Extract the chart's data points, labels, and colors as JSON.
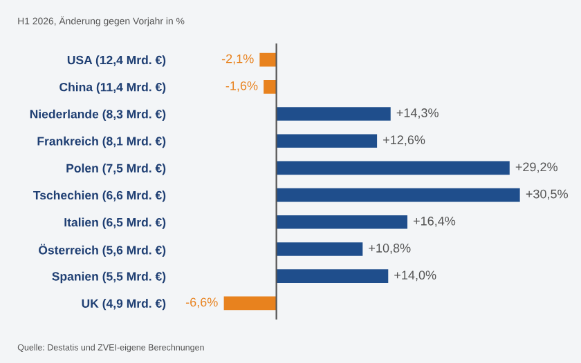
{
  "chart_data": {
    "type": "bar",
    "orientation": "horizontal",
    "title": "H1 2026, Änderung gegen Vorjahr in %",
    "categories": [
      "USA (12,4 Mrd. €)",
      "China (11,4 Mrd. €)",
      "Niederlande (8,3 Mrd. €)",
      "Frankreich (8,1 Mrd. €)",
      "Polen (7,5 Mrd. €)",
      "Tschechien (6,6 Mrd. €)",
      "Italien (6,5 Mrd. €)",
      "Österreich (5,6 Mrd. €)",
      "Spanien (5,5 Mrd. €)",
      "UK (4,9 Mrd. €)"
    ],
    "values": [
      -2.1,
      -1.6,
      14.3,
      12.6,
      29.2,
      30.5,
      16.4,
      10.8,
      14.0,
      -6.6
    ],
    "colors": [
      "#e8821e",
      "#e8821e",
      "#1f4e8c",
      "#1f4e8c",
      "#1f4e8c",
      "#1f4e8c",
      "#1f4e8c",
      "#1f4e8c",
      "#1f4e8c",
      "#e8821e"
    ],
    "value_labels": [
      "-2,1%",
      "-1,6%",
      "+14,3%",
      "+12,6%",
      "+29,2%",
      "+30,5%",
      "+16,4%",
      "+10,8%",
      "+14,0%",
      "-6,6%"
    ],
    "legend": false,
    "grid": false,
    "annotations": [
      "Quelle: Destatis und ZVEI-eigene Berechnungen"
    ]
  }
}
